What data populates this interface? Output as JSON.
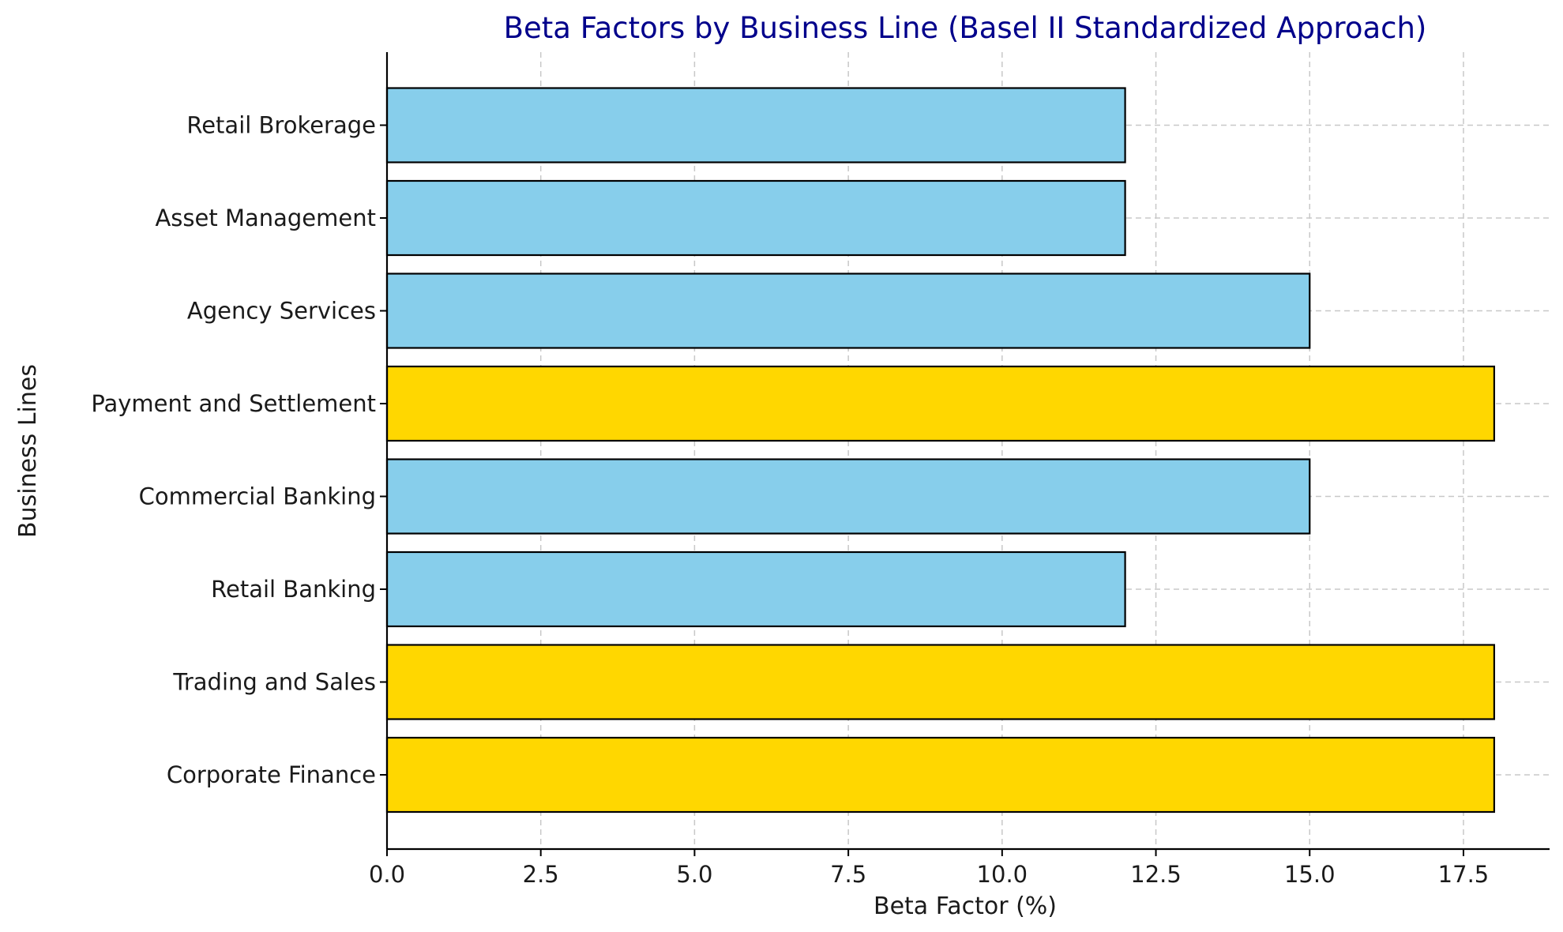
{
  "chart_data": {
    "type": "bar",
    "orientation": "horizontal",
    "title": "Beta Factors by Business Line (Basel II Standardized Approach)",
    "xlabel": "Beta Factor (%)",
    "ylabel": "Business Lines",
    "categories": [
      "Corporate Finance",
      "Trading and Sales",
      "Retail Banking",
      "Commercial Banking",
      "Payment and Settlement",
      "Agency Services",
      "Asset Management",
      "Retail Brokerage"
    ],
    "values": [
      18,
      18,
      12,
      15,
      18,
      15,
      12,
      12
    ],
    "bar_colors": [
      "#ffd700",
      "#ffd700",
      "#87ceeb",
      "#87ceeb",
      "#ffd700",
      "#87ceeb",
      "#87ceeb",
      "#87ceeb"
    ],
    "xlim": [
      0,
      18.9
    ],
    "xticks": [
      "0.0",
      "2.5",
      "5.0",
      "7.5",
      "10.0",
      "12.5",
      "15.0",
      "17.5"
    ],
    "grid": true
  }
}
